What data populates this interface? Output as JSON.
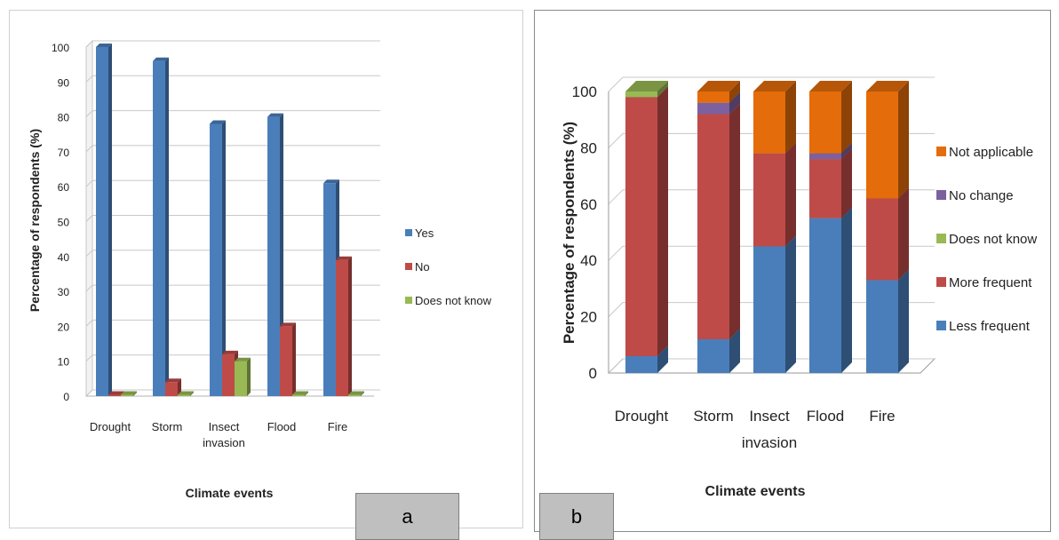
{
  "chart_data": [
    {
      "panel_label": "a",
      "type": "bar",
      "categories": [
        "Drought",
        "Storm",
        "Insect invasion",
        "Flood",
        "Fire"
      ],
      "series": [
        {
          "name": "Yes",
          "values": [
            100,
            96,
            78,
            80,
            61
          ],
          "color": "#4a7ebb"
        },
        {
          "name": "No",
          "values": [
            0,
            4,
            12,
            20,
            39
          ],
          "color": "#be4b48"
        },
        {
          "name": "Does not know",
          "values": [
            0,
            0,
            10,
            0,
            0
          ],
          "color": "#98b954"
        }
      ],
      "yticks": [
        "0",
        "10",
        "20",
        "30",
        "40",
        "50",
        "60",
        "70",
        "80",
        "90",
        "100"
      ],
      "xlabel": "Climate events",
      "ylabel": "Percentage of respondents (%)",
      "ylim": [
        0,
        100
      ],
      "legend_position": "right",
      "grid": true
    },
    {
      "panel_label": "b",
      "type": "bar",
      "stacked": true,
      "categories": [
        "Drought",
        "Storm",
        "Insect invasion",
        "Flood",
        "Fire"
      ],
      "series": [
        {
          "name": "Less frequent",
          "values": [
            6,
            12,
            45,
            55,
            33
          ],
          "color": "#4a7ebb"
        },
        {
          "name": "More frequent",
          "values": [
            92,
            80,
            33,
            21,
            29
          ],
          "color": "#be4b48"
        },
        {
          "name": "Does not know",
          "values": [
            2,
            0,
            0,
            0,
            0
          ],
          "color": "#98b954"
        },
        {
          "name": "No change",
          "values": [
            0,
            4,
            0,
            2,
            0
          ],
          "color": "#7d60a0"
        },
        {
          "name": "Not applicable",
          "values": [
            0,
            4,
            22,
            22,
            38
          ],
          "color": "#e46c0a"
        }
      ],
      "yticks": [
        "0",
        "20",
        "40",
        "60",
        "80",
        "100"
      ],
      "xlabel": "Climate events",
      "ylabel": "Percentage of respondents (%)",
      "ylim": [
        0,
        100
      ],
      "legend_position": "right",
      "grid": true
    }
  ]
}
